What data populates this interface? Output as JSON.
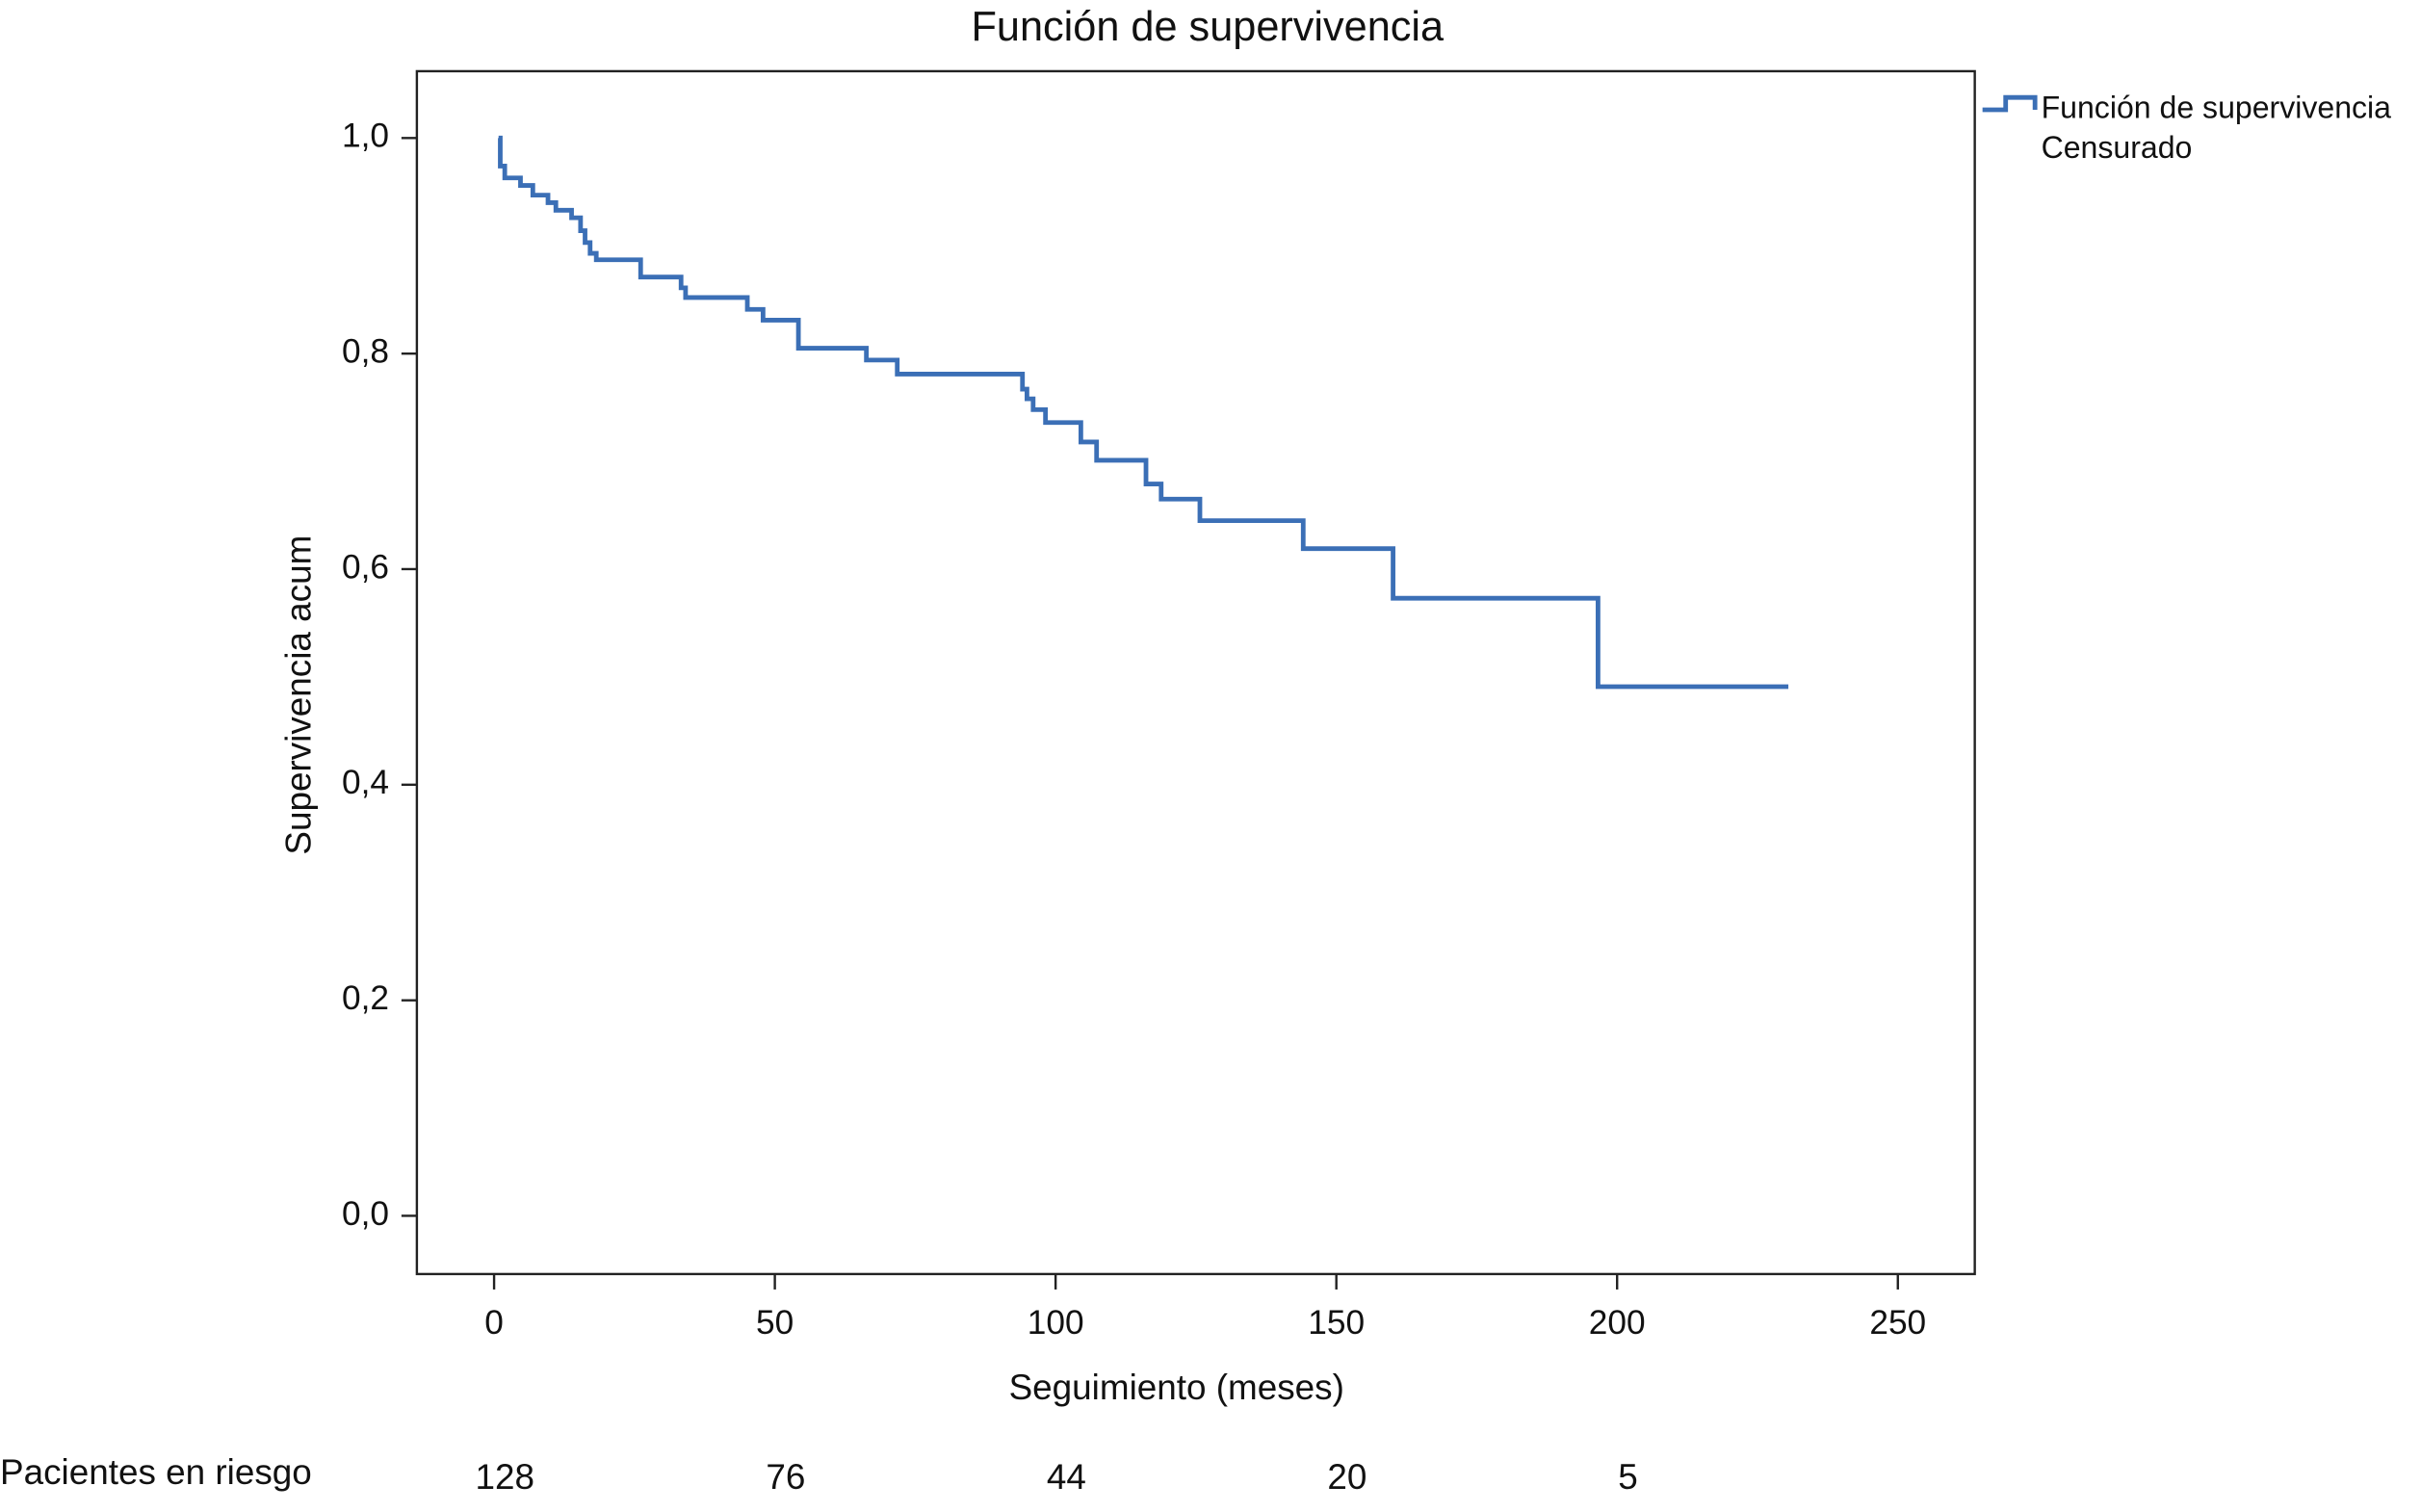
{
  "chart_data": {
    "type": "step",
    "title": "Función de supervivencia",
    "x_label": "Seguimiento (meses)",
    "y_label": "Supervivencia acum",
    "xlim": [
      -13.75,
      263.7
    ],
    "ylim": [
      -0.054,
      1.062
    ],
    "xticks": [
      0,
      50,
      100,
      150,
      200,
      250
    ],
    "yticks": [
      {
        "value": 0,
        "label": "0,0"
      },
      {
        "value": 0.2,
        "label": "0,2"
      },
      {
        "value": 0.4,
        "label": "0,4"
      },
      {
        "value": 0.6,
        "label": "0,6"
      },
      {
        "value": 0.8,
        "label": "0,8"
      },
      {
        "value": 1.0,
        "label": "1,0"
      }
    ],
    "legend_position": "right-outside",
    "legend_extra": "Censurado",
    "series": [
      {
        "name": "Función de supervivencia",
        "color": "#3b6fb6",
        "x": [
          0.8,
          1.1,
          1.9,
          4.7,
          6.9,
          9.6,
          11.0,
          13.8,
          15.4,
          16.2,
          17.1,
          18.2,
          26.1,
          33.3,
          34.1,
          45.1,
          47.9,
          54.2,
          66.3,
          71.8,
          94.1,
          94.9,
          96.0,
          98.2,
          104.5,
          107.3,
          116.1,
          118.8,
          125.7,
          144.1,
          160.1,
          196.6,
          230.5
        ],
        "values": [
          1.0,
          0.974,
          0.963,
          0.956,
          0.947,
          0.94,
          0.933,
          0.926,
          0.914,
          0.903,
          0.893,
          0.887,
          0.871,
          0.861,
          0.852,
          0.841,
          0.831,
          0.805,
          0.794,
          0.781,
          0.767,
          0.758,
          0.748,
          0.736,
          0.718,
          0.701,
          0.679,
          0.665,
          0.645,
          0.619,
          0.573,
          0.491,
          0.491
        ]
      }
    ],
    "at_risk": {
      "label": "Pacientes en riesgo",
      "values": [
        128,
        76,
        44,
        20,
        5
      ]
    }
  }
}
